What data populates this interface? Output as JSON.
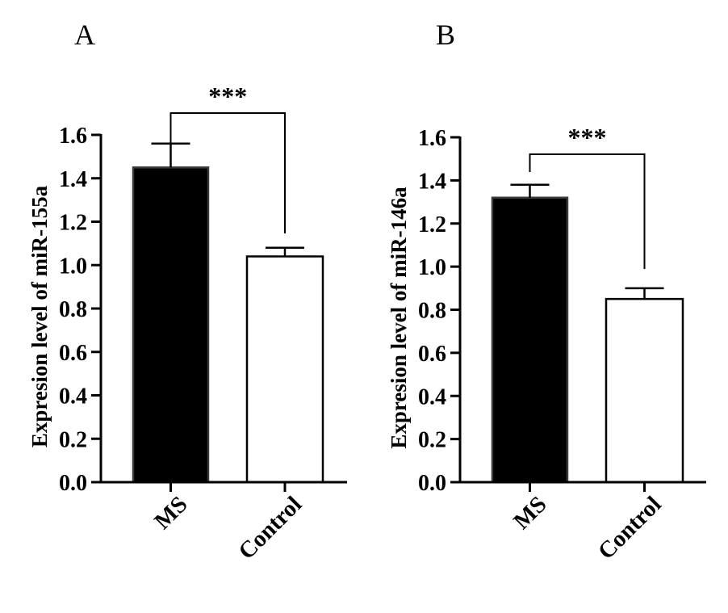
{
  "chart_data": [
    {
      "panel_label": "A",
      "type": "bar",
      "categories": [
        "MS",
        "Control"
      ],
      "values": [
        1.45,
        1.04
      ],
      "errors": [
        0.11,
        0.04
      ],
      "bar_fills": [
        "#000000",
        "#ffffff"
      ],
      "ylabel": "Expresion level of miR-155a",
      "ylim": [
        0,
        1.6
      ],
      "yticks": [
        "0.0",
        "0.2",
        "0.4",
        "0.6",
        "0.8",
        "1.0",
        "1.2",
        "1.4",
        "1.6"
      ],
      "significance": "***",
      "grid": false
    },
    {
      "panel_label": "B",
      "type": "bar",
      "categories": [
        "MS",
        "Control"
      ],
      "values": [
        1.32,
        0.85
      ],
      "errors": [
        0.06,
        0.05
      ],
      "bar_fills": [
        "#000000",
        "#ffffff"
      ],
      "ylabel": "Expresion level of miR-146a",
      "ylim": [
        0,
        1.6
      ],
      "yticks": [
        "0.0",
        "0.2",
        "0.4",
        "0.6",
        "0.8",
        "1.0",
        "1.2",
        "1.4",
        "1.6"
      ],
      "significance": "***",
      "grid": false
    }
  ]
}
